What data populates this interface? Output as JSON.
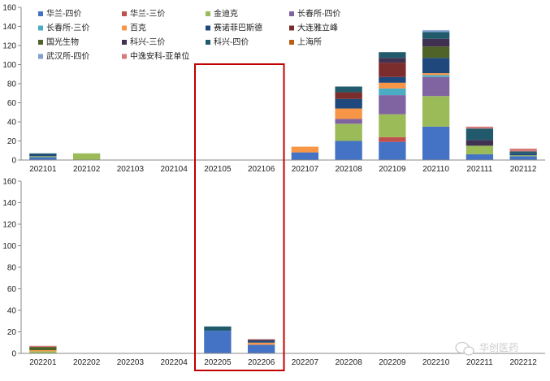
{
  "colors": {
    "highlight_box": "#c00000",
    "axis": "#888888"
  },
  "watermark": {
    "text": "华创医药",
    "icon": "wechat-icon"
  },
  "chart_data": [
    {
      "type": "bar",
      "stacked": true,
      "categories": [
        "202101",
        "202102",
        "202103",
        "202104",
        "202105",
        "202106",
        "202107",
        "202108",
        "202109",
        "202110",
        "202111",
        "202112"
      ],
      "ylim": [
        0,
        160
      ],
      "yticks": [
        0,
        20,
        40,
        60,
        80,
        100,
        120,
        140,
        160
      ],
      "legend": "top-left",
      "series": [
        {
          "name": "华兰-四价",
          "color": "#4472c4",
          "values": [
            3,
            0,
            0,
            0,
            0,
            0,
            8,
            20,
            19,
            35,
            6,
            4
          ]
        },
        {
          "name": "华兰-三价",
          "color": "#c0504d",
          "values": [
            0,
            0,
            0,
            0,
            0,
            0,
            0,
            0,
            5,
            0,
            0,
            0
          ]
        },
        {
          "name": "金迪克",
          "color": "#9bbb59",
          "values": [
            1,
            7,
            0,
            0,
            0,
            0,
            0,
            18,
            24,
            32,
            9,
            1
          ]
        },
        {
          "name": "长春所-四价",
          "color": "#8064a2",
          "values": [
            0,
            0,
            0,
            0,
            0,
            0,
            0,
            5,
            20,
            20,
            0,
            0
          ]
        },
        {
          "name": "长春所-三价",
          "color": "#4bacc6",
          "values": [
            0,
            0,
            0,
            0,
            0,
            0,
            0,
            0,
            7,
            2,
            0,
            0
          ]
        },
        {
          "name": "百克",
          "color": "#f79646",
          "values": [
            0,
            0,
            0,
            0,
            0,
            0,
            6,
            11,
            6,
            2,
            0,
            0
          ]
        },
        {
          "name": "赛诺菲巴斯德",
          "color": "#1f497d",
          "values": [
            2,
            0,
            0,
            0,
            0,
            0,
            0,
            10,
            6,
            16,
            0,
            2
          ]
        },
        {
          "name": "大连雅立峰",
          "color": "#7b2c2c",
          "values": [
            0,
            0,
            0,
            0,
            0,
            0,
            0,
            7,
            15,
            0,
            0,
            0
          ]
        },
        {
          "name": "国光生物",
          "color": "#4f6228",
          "values": [
            0,
            0,
            0,
            0,
            0,
            0,
            0,
            0,
            0,
            12,
            0,
            0
          ]
        },
        {
          "name": "科兴-三价",
          "color": "#403152",
          "values": [
            0,
            0,
            0,
            0,
            0,
            0,
            0,
            0,
            5,
            8,
            6,
            0
          ]
        },
        {
          "name": "科兴-四价",
          "color": "#215a6b",
          "values": [
            1,
            0,
            0,
            0,
            0,
            0,
            0,
            6,
            6,
            7,
            12,
            2
          ]
        },
        {
          "name": "上海所",
          "color": "#b85d12",
          "values": [
            0,
            0,
            0,
            0,
            0,
            0,
            0,
            0,
            0,
            0,
            0,
            0
          ]
        },
        {
          "name": "武汉所-四价",
          "color": "#7f9fcf",
          "values": [
            0,
            0,
            0,
            0,
            0,
            0,
            0,
            0,
            0,
            2,
            0,
            0
          ]
        },
        {
          "name": "中逸安科-亚单位",
          "color": "#d57b7b",
          "values": [
            0,
            0,
            0,
            0,
            0,
            0,
            0,
            0,
            0,
            0,
            2,
            3
          ]
        }
      ]
    },
    {
      "type": "bar",
      "stacked": true,
      "categories": [
        "202201",
        "202202",
        "202203",
        "202204",
        "202205",
        "202206",
        "202207",
        "202208",
        "202209",
        "202210",
        "202211",
        "202212"
      ],
      "ylim": [
        0,
        160
      ],
      "yticks": [
        0,
        20,
        40,
        60,
        80,
        100,
        120,
        140,
        160
      ],
      "series": [
        {
          "name": "华兰-四价",
          "color": "#4472c4",
          "values": [
            0,
            0,
            0,
            0,
            21,
            8,
            0,
            0,
            0,
            0,
            0,
            0
          ]
        },
        {
          "name": "华兰-三价",
          "color": "#c0504d",
          "values": [
            0,
            0,
            0,
            0,
            0,
            0,
            0,
            0,
            0,
            0,
            0,
            0
          ]
        },
        {
          "name": "金迪克",
          "color": "#9bbb59",
          "values": [
            2,
            0,
            0,
            0,
            0,
            0,
            0,
            0,
            0,
            0,
            0,
            0
          ]
        },
        {
          "name": "长春所-四价",
          "color": "#8064a2",
          "values": [
            0,
            0,
            0,
            0,
            0,
            0,
            0,
            0,
            0,
            0,
            0,
            0
          ]
        },
        {
          "name": "长春所-三价",
          "color": "#4bacc6",
          "values": [
            0,
            0,
            0,
            0,
            0,
            0,
            0,
            0,
            0,
            0,
            0,
            0
          ]
        },
        {
          "name": "百克",
          "color": "#f79646",
          "values": [
            1,
            0,
            0,
            0,
            0,
            2,
            0,
            0,
            0,
            0,
            0,
            0
          ]
        },
        {
          "name": "赛诺菲巴斯德",
          "color": "#1f497d",
          "values": [
            0,
            0,
            0,
            0,
            0,
            2,
            0,
            0,
            0,
            0,
            0,
            0
          ]
        },
        {
          "name": "大连雅立峰",
          "color": "#7b2c2c",
          "values": [
            0,
            0,
            0,
            0,
            0,
            1,
            0,
            0,
            0,
            0,
            0,
            0
          ]
        },
        {
          "name": "国光生物",
          "color": "#4f6228",
          "values": [
            3,
            0,
            0,
            0,
            0,
            0,
            0,
            0,
            0,
            0,
            0,
            0
          ]
        },
        {
          "name": "科兴-三价",
          "color": "#403152",
          "values": [
            0,
            0,
            0,
            0,
            0,
            0,
            0,
            0,
            0,
            0,
            0,
            0
          ]
        },
        {
          "name": "科兴-四价",
          "color": "#215a6b",
          "values": [
            0,
            0,
            0,
            0,
            4,
            0,
            0,
            0,
            0,
            0,
            0,
            0
          ]
        },
        {
          "name": "上海所",
          "color": "#b85d12",
          "values": [
            0,
            0,
            0,
            0,
            0,
            0,
            0,
            0,
            0,
            0,
            0,
            0
          ]
        },
        {
          "name": "武汉所-四价",
          "color": "#7f9fcf",
          "values": [
            0,
            0,
            0,
            0,
            0,
            0,
            0,
            0,
            0,
            0,
            0,
            0
          ]
        },
        {
          "name": "中逸安科-亚单位",
          "color": "#d57b7b",
          "values": [
            1,
            0,
            0,
            0,
            0,
            0,
            0,
            0,
            0,
            0,
            0,
            0
          ]
        }
      ]
    }
  ]
}
